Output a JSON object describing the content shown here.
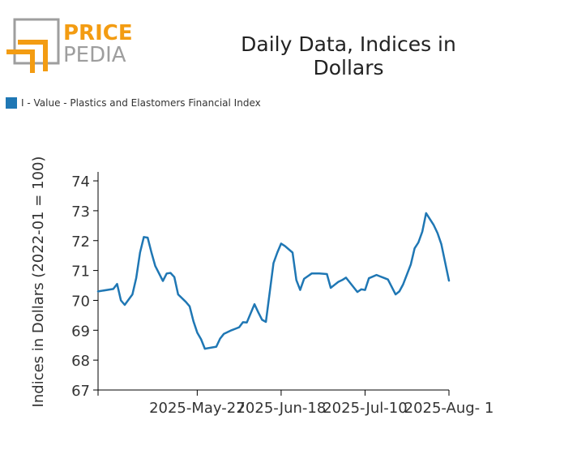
{
  "logo": {
    "line1": "PRICE",
    "line2": "PEDIA",
    "accent": "#f39c12",
    "gray": "#9e9e9e"
  },
  "colors": {
    "series": "#1f77b4",
    "axis": "#000000",
    "text": "#333333"
  },
  "chart_data": {
    "type": "line",
    "title": "Daily Data, Indices in Dollars",
    "ylabel": "Indices in Dollars (2022-01 = 100)",
    "xlabel": "",
    "grid": false,
    "legend_position": "top-left",
    "ylim": [
      67,
      74.3
    ],
    "yticks": [
      67,
      68,
      69,
      70,
      71,
      72,
      73,
      74
    ],
    "xlim": [
      "2025-05-01",
      "2025-08-01"
    ],
    "xticks": [
      {
        "date": "2025-05-27",
        "label": "2025-May-27"
      },
      {
        "date": "2025-06-18",
        "label": "2025-Jun-18"
      },
      {
        "date": "2025-07-10",
        "label": "2025-Jul-10"
      },
      {
        "date": "2025-08-01",
        "label": "2025-Aug- 1"
      }
    ],
    "series": [
      {
        "name": "I - Value - Plastics and Elastomers Financial Index",
        "color": "#1f77b4",
        "x": [
          "2025-05-01",
          "2025-05-05",
          "2025-05-06",
          "2025-05-07",
          "2025-05-08",
          "2025-05-10",
          "2025-05-11",
          "2025-05-12",
          "2025-05-13",
          "2025-05-14",
          "2025-05-15",
          "2025-05-16",
          "2025-05-18",
          "2025-05-19",
          "2025-05-20",
          "2025-05-21",
          "2025-05-22",
          "2025-05-24",
          "2025-05-25",
          "2025-05-26",
          "2025-05-27",
          "2025-05-28",
          "2025-05-29",
          "2025-06-01",
          "2025-06-02",
          "2025-06-03",
          "2025-06-05",
          "2025-06-06",
          "2025-06-07",
          "2025-06-08",
          "2025-06-09",
          "2025-06-11",
          "2025-06-12",
          "2025-06-13",
          "2025-06-14",
          "2025-06-16",
          "2025-06-17",
          "2025-06-18",
          "2025-06-19",
          "2025-06-21",
          "2025-06-22",
          "2025-06-23",
          "2025-06-24",
          "2025-06-26",
          "2025-06-27",
          "2025-06-28",
          "2025-06-30",
          "2025-07-01",
          "2025-07-02",
          "2025-07-03",
          "2025-07-04",
          "2025-07-05",
          "2025-07-08",
          "2025-07-09",
          "2025-07-10",
          "2025-07-11",
          "2025-07-13",
          "2025-07-14",
          "2025-07-15",
          "2025-07-16",
          "2025-07-18",
          "2025-07-19",
          "2025-07-20",
          "2025-07-22",
          "2025-07-23",
          "2025-07-24",
          "2025-07-25",
          "2025-07-26",
          "2025-07-28",
          "2025-07-29",
          "2025-07-30",
          "2025-08-01"
        ],
        "y": [
          70.3,
          70.38,
          70.55,
          70.0,
          69.85,
          70.2,
          70.75,
          71.6,
          72.12,
          72.1,
          71.6,
          71.15,
          70.65,
          70.9,
          70.92,
          70.78,
          70.2,
          69.95,
          69.8,
          69.3,
          68.92,
          68.7,
          68.38,
          68.45,
          68.72,
          68.88,
          69.0,
          69.05,
          69.1,
          69.27,
          69.26,
          69.87,
          69.6,
          69.35,
          69.28,
          71.25,
          71.6,
          71.9,
          71.82,
          71.6,
          70.68,
          70.35,
          70.72,
          70.9,
          70.9,
          70.9,
          70.88,
          70.42,
          70.52,
          70.62,
          70.68,
          70.76,
          70.28,
          70.37,
          70.35,
          70.74,
          70.85,
          70.8,
          70.75,
          70.7,
          70.2,
          70.3,
          70.54,
          71.2,
          71.74,
          71.94,
          72.3,
          72.92,
          72.52,
          72.25,
          71.88,
          70.66
        ]
      }
    ]
  }
}
